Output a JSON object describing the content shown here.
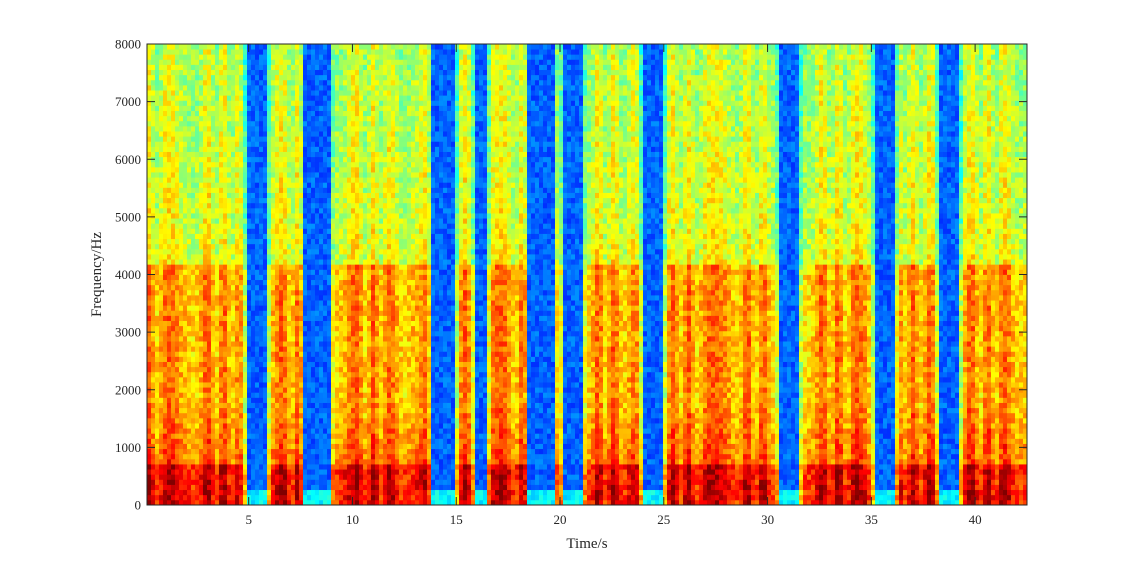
{
  "chart_data": {
    "type": "heatmap",
    "title": "",
    "xlabel": "Time/s",
    "ylabel": "Frequency/Hz",
    "xlim": [
      0.1,
      42.5
    ],
    "ylim": [
      0,
      8000
    ],
    "x_ticks": [
      5,
      10,
      15,
      20,
      25,
      30,
      35,
      40
    ],
    "y_ticks": [
      0,
      1000,
      2000,
      3000,
      4000,
      5000,
      6000,
      7000,
      8000
    ],
    "colormap": "jet",
    "grid": false,
    "legend": "none",
    "low_energy_intervals_s": [
      [
        4.9,
        5.8
      ],
      [
        7.8,
        8.8
      ],
      [
        13.9,
        14.9
      ],
      [
        16.0,
        16.4
      ],
      [
        18.6,
        19.6
      ],
      [
        20.2,
        21.0
      ],
      [
        24.0,
        24.9
      ],
      [
        30.6,
        31.5
      ],
      [
        35.2,
        36.1
      ],
      [
        38.3,
        39.2
      ]
    ],
    "colors": {
      "silence": "#2b9fe8",
      "background": "#48d0c8",
      "mid": "#f4e61a",
      "strong": "#f07f20",
      "peak": "#d42a1c"
    }
  }
}
